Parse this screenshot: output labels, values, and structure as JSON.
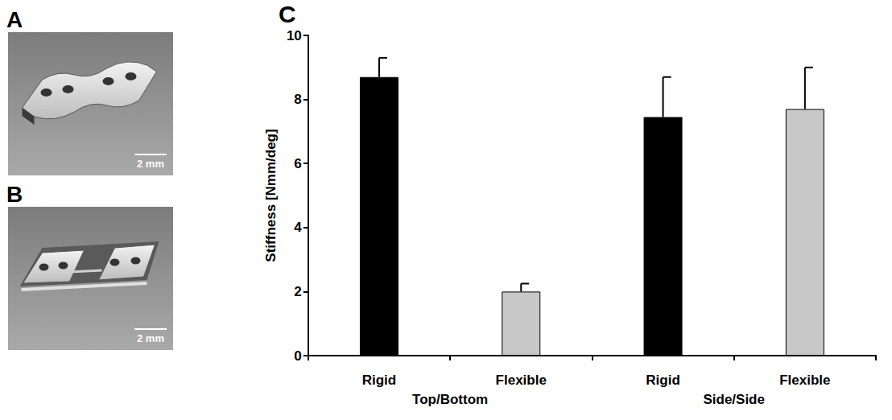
{
  "panels": [
    {
      "letter": "A",
      "scale_bar": "2 mm"
    },
    {
      "letter": "B",
      "scale_bar": "2 mm"
    }
  ],
  "chart_letter": "C",
  "chart_data": {
    "type": "bar",
    "categories": [
      "Rigid",
      "Flexible",
      "Rigid",
      "Flexible"
    ],
    "group_labels": [
      "Top/Bottom",
      "Side/Side"
    ],
    "values": [
      8.7,
      2.0,
      7.45,
      7.7
    ],
    "errors_upper": [
      0.6,
      0.25,
      1.25,
      1.3
    ],
    "colors": [
      "#000000",
      "#c8c8c8",
      "#000000",
      "#c8c8c8"
    ],
    "y_label": "Stiffness [Nmm/deg]",
    "ylim": [
      0,
      10
    ],
    "yticks": [
      0,
      2,
      4,
      6,
      8,
      10
    ],
    "grid": false
  }
}
